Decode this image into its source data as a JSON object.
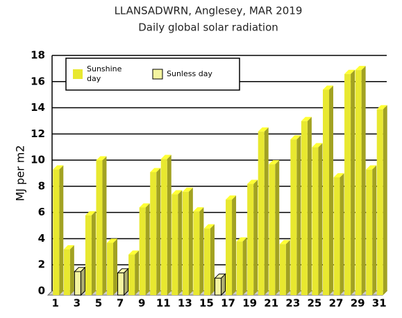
{
  "chart_data": {
    "type": "bar3d",
    "title": "LLANSADWRN, Anglesey, MAR 2019",
    "subtitle": "Daily global solar radiation",
    "y_label": "MJ per m2",
    "categories": [
      "1",
      null,
      "3",
      null,
      "5",
      null,
      "7",
      null,
      "9",
      null,
      "11",
      null,
      "13",
      null,
      "15",
      null,
      "17",
      null,
      "19",
      null,
      "21",
      null,
      "23",
      null,
      "25",
      null,
      "27",
      null,
      "29",
      null,
      "31"
    ],
    "series": [
      {
        "name": "Sunshine day",
        "color": "#e8e830",
        "values": [
          9.6,
          3.5,
          null,
          6.1,
          10.3,
          4.0,
          null,
          3.1,
          6.7,
          9.4,
          10.4,
          7.7,
          7.9,
          6.4,
          5.1,
          null,
          7.3,
          4.1,
          8.5,
          12.5,
          10.0,
          3.9,
          11.9,
          13.3,
          11.3,
          15.7,
          9.0,
          16.9,
          17.2,
          9.6,
          14.2
        ]
      },
      {
        "name": "Sunless day",
        "color": "#f4f4a0",
        "values": [
          null,
          null,
          1.8,
          null,
          null,
          null,
          1.7,
          null,
          null,
          null,
          null,
          null,
          null,
          null,
          null,
          1.3,
          null,
          null,
          null,
          null,
          null,
          null,
          null,
          null,
          null,
          null,
          null,
          null,
          null,
          null,
          null
        ]
      }
    ],
    "ylim": [
      0,
      18
    ],
    "yticks": [
      0,
      2,
      4,
      6,
      8,
      10,
      12,
      14,
      16,
      18
    ],
    "grid": true
  }
}
